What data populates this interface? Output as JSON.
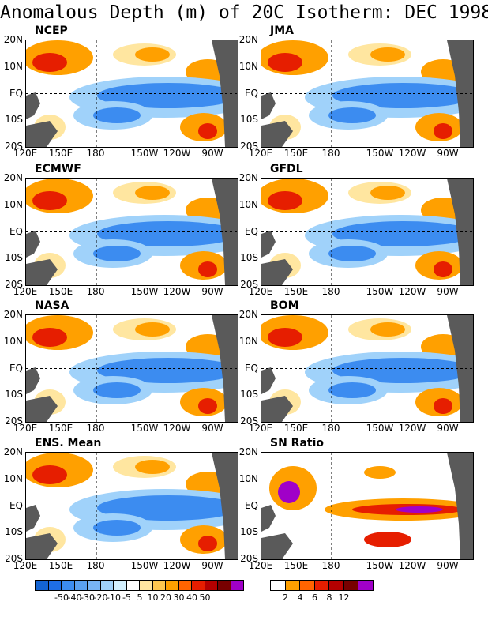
{
  "title": "Anomalous Depth (m) of 20C Isotherm: DEC 1998",
  "panels": [
    {
      "name": "NCEP"
    },
    {
      "name": "JMA"
    },
    {
      "name": "ECMWF"
    },
    {
      "name": "GFDL"
    },
    {
      "name": "NASA"
    },
    {
      "name": "BOM"
    },
    {
      "name": "ENS. Mean"
    },
    {
      "name": "SN Ratio"
    }
  ],
  "lat_labels": [
    "20N",
    "10N",
    "EQ",
    "10S",
    "20S"
  ],
  "lon_labels": [
    "120E",
    "150E",
    "180",
    "150W",
    "120W",
    "90W"
  ],
  "colorbar_anomaly": {
    "labels": [
      "-50",
      "-40",
      "-30",
      "-20",
      "-10",
      "-5",
      "5",
      "10",
      "20",
      "30",
      "40",
      "50"
    ],
    "colors": [
      "#1464d2",
      "#1e6ee6",
      "#3c8cf0",
      "#5aa0f0",
      "#78b4f5",
      "#a0d2fa",
      "#d2f0ff",
      "#ffffff",
      "#ffe6a0",
      "#ffc850",
      "#ffa000",
      "#ff6400",
      "#e61e00",
      "#b40000",
      "#780000",
      "#a000c8"
    ]
  },
  "colorbar_sn": {
    "labels": [
      "2",
      "4",
      "6",
      "8",
      "12"
    ],
    "colors": [
      "#ffffff",
      "#ffa000",
      "#ff6400",
      "#e61e00",
      "#b40000",
      "#780000",
      "#a000c8"
    ]
  },
  "colors": {
    "land": "#5a5a5a",
    "blue": "#3c8cf0",
    "lightblue": "#a0d2fa",
    "orange": "#ffa000",
    "red": "#e61e00",
    "yellow": "#ffe6a0"
  }
}
